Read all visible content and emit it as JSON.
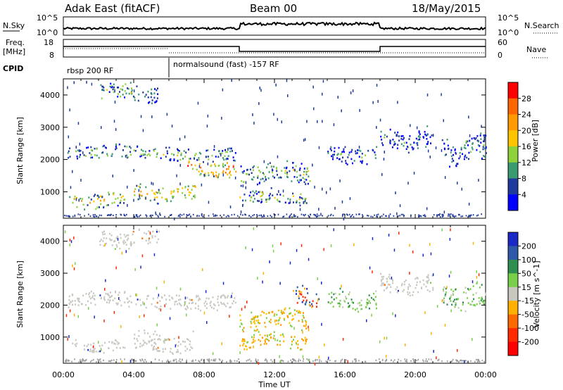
{
  "header": {
    "radar": "Adak East (fitACF)",
    "beam": "Beam 00",
    "date": "18/May/2015"
  },
  "panels": {
    "nsky_label": "N.Sky",
    "nsearch_label": "N.Search",
    "nsky_ticks": [
      "10^5",
      "10^0"
    ],
    "nsearch_ticks": [
      "10^5",
      "10^0"
    ],
    "freq_label": "Freq.",
    "freq_unit": "[MHz]",
    "freq_ticks": [
      "18",
      "8"
    ],
    "nave_label": "Nave",
    "nave_ticks": [
      "60",
      "0"
    ],
    "cpid_label": "CPID",
    "cpid_segments": [
      "rbsp 200 RF",
      "normalsound (fast) -157 RF"
    ]
  },
  "colors": {
    "scatter_gray": "#c8c8c0",
    "ground_gray": "#9a9a9a"
  },
  "chart_data": [
    {
      "type": "heatmap",
      "name": "power",
      "ylabel": "Slant Range [km]",
      "y_ticks": [
        1000,
        2000,
        3000,
        4000
      ],
      "ylim": [
        180,
        4500
      ],
      "colorbar_label": "Power [dB]",
      "colorbar_ticks": [
        "28",
        "24",
        "20",
        "16",
        "12",
        "8",
        "4"
      ],
      "colorbar_colors": [
        "#ff0000",
        "#ff6600",
        "#ff9a00",
        "#ffc400",
        "#8fd13a",
        "#3c9a70",
        "#1f3a9a",
        "#0000ff"
      ],
      "x_ticks": [
        "00:00",
        "04:00",
        "08:00",
        "12:00",
        "16:00",
        "20:00",
        "00:00"
      ],
      "xlim_hours": [
        0,
        24
      ],
      "regions": [
        {
          "t0": 0.2,
          "t1": 9.8,
          "r0": 2000,
          "r1": 2450,
          "level": 0.35
        },
        {
          "t0": 7.0,
          "t1": 9.8,
          "r0": 1450,
          "r1": 2050,
          "level": 0.8
        },
        {
          "t0": 4.0,
          "t1": 7.5,
          "r0": 700,
          "r1": 1250,
          "level": 0.7
        },
        {
          "t0": 0.3,
          "t1": 3.5,
          "r0": 500,
          "r1": 1000,
          "level": 0.55
        },
        {
          "t0": 10.0,
          "t1": 14.0,
          "r0": 1200,
          "r1": 1950,
          "level": 0.35
        },
        {
          "t0": 10.0,
          "t1": 13.8,
          "r0": 600,
          "r1": 1100,
          "level": 0.35
        },
        {
          "t0": 2.0,
          "t1": 5.4,
          "r0": 3800,
          "r1": 4400,
          "level": 0.3
        },
        {
          "t0": 15.0,
          "t1": 17.8,
          "r0": 1850,
          "r1": 2450,
          "level": 0.15
        },
        {
          "t0": 18.0,
          "t1": 21.0,
          "r0": 2300,
          "r1": 3000,
          "level": 0.15
        },
        {
          "t0": 21.5,
          "t1": 24.0,
          "r0": 1850,
          "r1": 2800,
          "level": 0.15
        }
      ]
    },
    {
      "type": "heatmap",
      "name": "velocity",
      "ylabel": "Slant Range [km]",
      "xlabel": "Time UT",
      "y_ticks": [
        1000,
        2000,
        3000,
        4000
      ],
      "ylim": [
        180,
        4500
      ],
      "colorbar_label": "Velocity [m s^-1]",
      "colorbar_ticks": [
        "200",
        "100",
        "50",
        "15",
        "-15",
        "-50",
        "-100",
        "-200"
      ],
      "colorbar_colors": [
        "#1a28c8",
        "#2f58a8",
        "#2f8f50",
        "#7ad04a",
        "#c8c8c0",
        "#ffb000",
        "#ff6a00",
        "#ff2a00",
        "#ff0000"
      ],
      "x_ticks": [
        "00:00",
        "04:00",
        "08:00",
        "12:00",
        "16:00",
        "20:00",
        "00:00"
      ],
      "xlim_hours": [
        0,
        24
      ],
      "regions": [
        {
          "t0": 0.2,
          "t1": 9.8,
          "r0": 1900,
          "r1": 2450,
          "cls": "gray"
        },
        {
          "t0": 4.0,
          "t1": 7.5,
          "r0": 500,
          "r1": 1200,
          "cls": "gray"
        },
        {
          "t0": 0.3,
          "t1": 3.5,
          "r0": 550,
          "r1": 950,
          "cls": "gray"
        },
        {
          "t0": 2.0,
          "t1": 5.4,
          "r0": 3800,
          "r1": 4400,
          "cls": "gray"
        },
        {
          "t0": 10.0,
          "t1": 13.8,
          "r0": 1200,
          "r1": 1950,
          "cls": "orange"
        },
        {
          "t0": 10.0,
          "t1": 13.8,
          "r0": 600,
          "r1": 1150,
          "cls": "orange"
        },
        {
          "t0": 13.0,
          "t1": 14.5,
          "r0": 1900,
          "r1": 2600,
          "cls": "blue"
        },
        {
          "t0": 15.0,
          "t1": 17.8,
          "r0": 1850,
          "r1": 2500,
          "cls": "green"
        },
        {
          "t0": 18.0,
          "t1": 21.0,
          "r0": 2300,
          "r1": 3000,
          "cls": "gray"
        },
        {
          "t0": 21.5,
          "t1": 24.0,
          "r0": 1850,
          "r1": 2700,
          "cls": "green"
        }
      ]
    }
  ]
}
